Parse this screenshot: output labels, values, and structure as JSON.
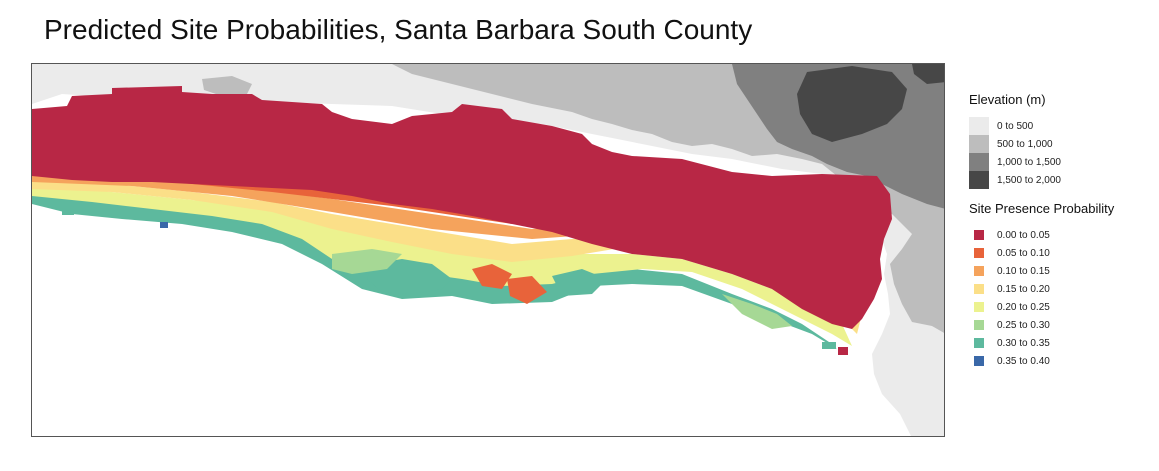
{
  "title": "Predicted Site Probabilities, Santa Barbara South County",
  "legend": {
    "elevation": {
      "title": "Elevation (m)",
      "items": [
        {
          "label": "0 to 500",
          "color": "#ebebeb"
        },
        {
          "label": "500 to 1,000",
          "color": "#bdbdbd"
        },
        {
          "label": "1,000 to 1,500",
          "color": "#808080"
        },
        {
          "label": "1,500 to 2,000",
          "color": "#474747"
        }
      ]
    },
    "probability": {
      "title": "Site Presence Probability",
      "items": [
        {
          "label": "0.00 to 0.05",
          "color": "#b82745"
        },
        {
          "label": "0.05 to 0.10",
          "color": "#e8633a"
        },
        {
          "label": "0.10 to 0.15",
          "color": "#f5a35c"
        },
        {
          "label": "0.15 to 0.20",
          "color": "#fbdf88"
        },
        {
          "label": "0.20 to 0.25",
          "color": "#ecf28f"
        },
        {
          "label": "0.25 to 0.30",
          "color": "#a6d895"
        },
        {
          "label": "0.30 to 0.35",
          "color": "#5db99e"
        },
        {
          "label": "0.35 to 0.40",
          "color": "#3a68a8"
        }
      ]
    }
  }
}
